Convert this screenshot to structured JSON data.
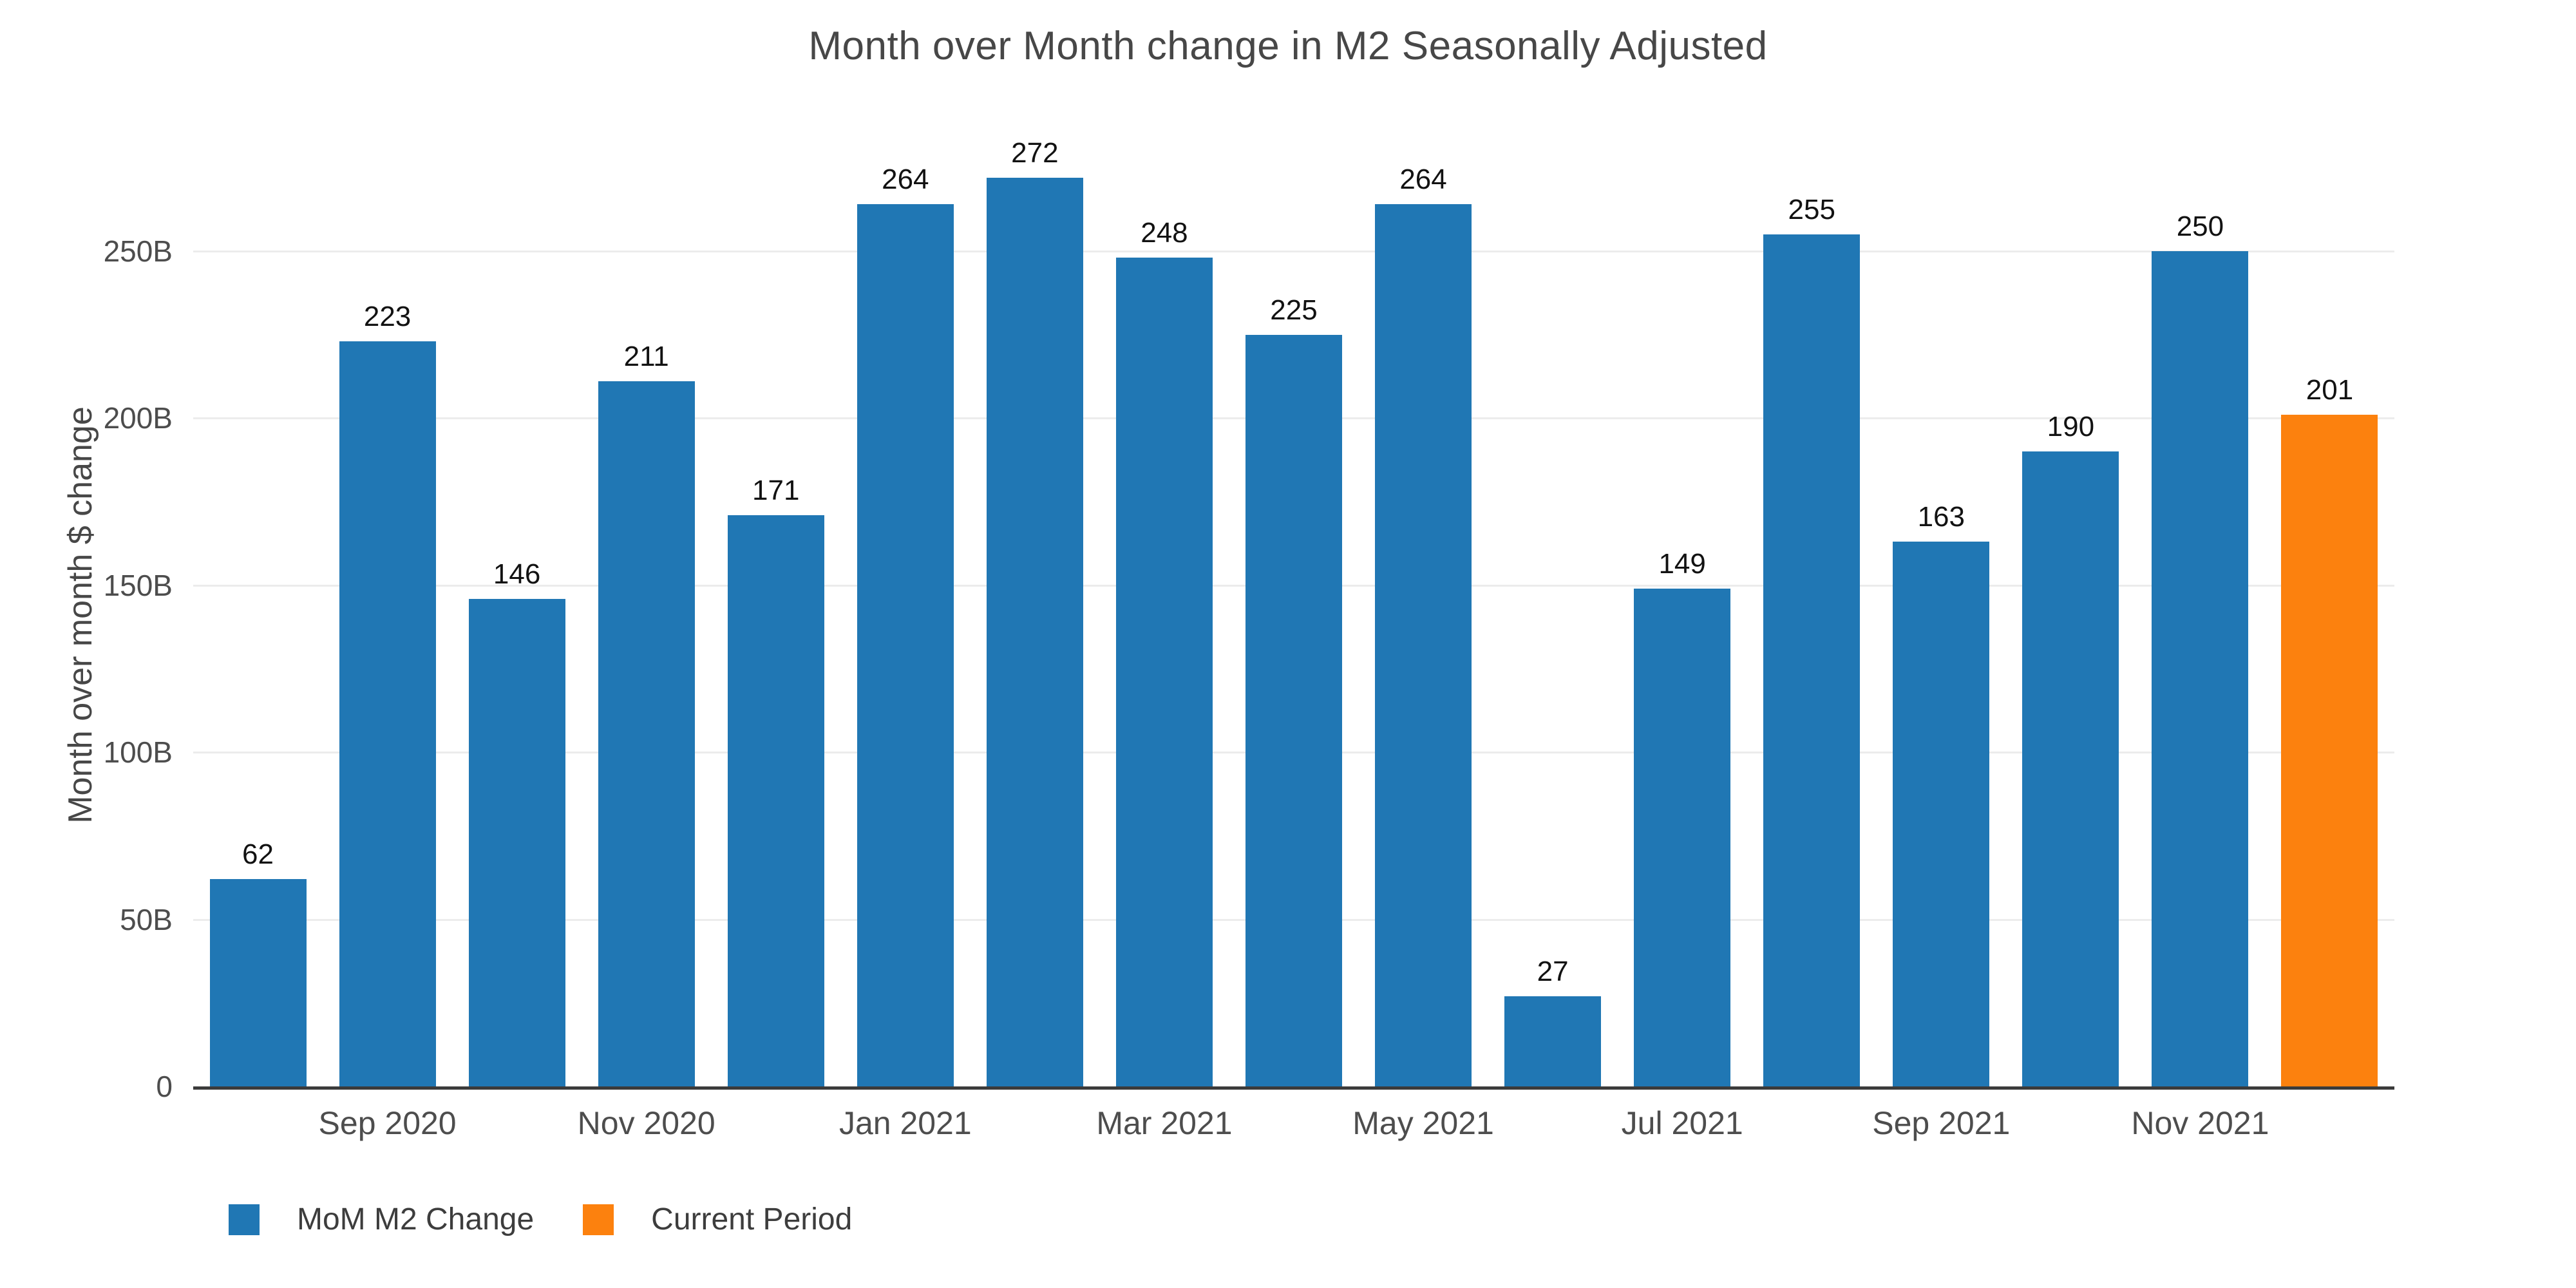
{
  "title": "Month over Month change in M2 Seasonally Adjusted",
  "y_axis": {
    "title": "Month over month $ change",
    "ticks": [
      {
        "label": "0",
        "value": 0
      },
      {
        "label": "50B",
        "value": 50
      },
      {
        "label": "100B",
        "value": 100
      },
      {
        "label": "150B",
        "value": 150
      },
      {
        "label": "200B",
        "value": 200
      },
      {
        "label": "250B",
        "value": 250
      }
    ]
  },
  "x_axis": {
    "ticks": [
      {
        "label": "Sep 2020",
        "slot": 2
      },
      {
        "label": "Nov 2020",
        "slot": 4
      },
      {
        "label": "Jan 2021",
        "slot": 6
      },
      {
        "label": "Mar 2021",
        "slot": 8
      },
      {
        "label": "May 2021",
        "slot": 10
      },
      {
        "label": "Jul 2021",
        "slot": 12
      },
      {
        "label": "Sep 2021",
        "slot": 14
      },
      {
        "label": "Nov 2021",
        "slot": 16
      }
    ]
  },
  "legend": {
    "items": [
      {
        "label": "MoM M2 Change",
        "color": "#2077b4"
      },
      {
        "label": "Current Period",
        "color": "#fc810e"
      }
    ]
  },
  "chart_data": {
    "type": "bar",
    "title": "Month over Month change in M2 Seasonally Adjusted",
    "xlabel": "",
    "ylabel": "Month over month $ change",
    "bar_count": 17,
    "values": [
      62,
      223,
      146,
      211,
      171,
      264,
      272,
      248,
      225,
      264,
      27,
      149,
      255,
      163,
      190,
      250,
      201
    ],
    "value_labels": [
      "62",
      "223",
      "146",
      "211",
      "171",
      "264",
      "272",
      "248",
      "225",
      "264",
      "27",
      "149",
      "255",
      "163",
      "190",
      "250",
      "201"
    ],
    "series": [
      {
        "name": "MoM M2 Change",
        "color": "#2077b4"
      },
      {
        "name": "Current Period",
        "color": "#fc810e"
      }
    ],
    "bar_series_index": [
      0,
      0,
      0,
      0,
      0,
      0,
      0,
      0,
      0,
      0,
      0,
      0,
      0,
      0,
      0,
      0,
      1
    ],
    "x_tick_labels": [
      "Sep 2020",
      "Nov 2020",
      "Jan 2021",
      "Mar 2021",
      "May 2021",
      "Jul 2021",
      "Sep 2021",
      "Nov 2021"
    ],
    "x_tick_slots": [
      2,
      4,
      6,
      8,
      10,
      12,
      14,
      16
    ],
    "y_tick_labels": [
      "0",
      "50B",
      "100B",
      "150B",
      "200B",
      "250B"
    ],
    "y_tick_values": [
      0,
      50,
      100,
      150,
      200,
      250
    ],
    "ylim": [
      0,
      250
    ],
    "grid": "horizontal-only",
    "legend_position": "bottom-left",
    "background": "#ffffff"
  }
}
